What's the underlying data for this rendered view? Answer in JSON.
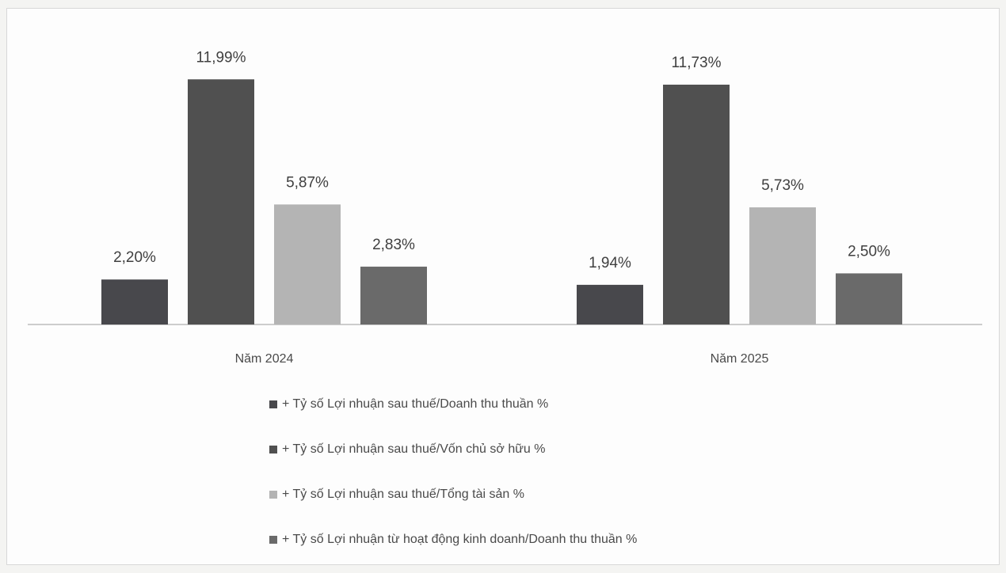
{
  "chart_data": {
    "type": "bar",
    "categories": [
      "Năm 2024",
      "Năm 2025"
    ],
    "series": [
      {
        "name": "+ Tỷ số Lợi nhuận sau thuế/Doanh thu thuần %",
        "values": [
          2.2,
          1.94
        ],
        "labels": [
          "2,20%",
          "1,94%"
        ],
        "color": "#48484c"
      },
      {
        "name": "+ Tỷ số Lợi nhuận sau thuế/Vốn chủ sở hữu %",
        "values": [
          11.99,
          11.73
        ],
        "labels": [
          "11,99%",
          "11,73%"
        ],
        "color": "#505050"
      },
      {
        "name": "+ Tỷ số Lợi nhuận sau thuế/Tổng tài sản %",
        "values": [
          5.87,
          5.73
        ],
        "labels": [
          "5,87%",
          "5,73%"
        ],
        "color": "#b4b4b4"
      },
      {
        "name": "+ Tỷ số Lợi nhuận từ hoạt động kinh doanh/Doanh thu thuần %",
        "values": [
          2.83,
          2.5
        ],
        "labels": [
          "2,83%",
          "2,50%"
        ],
        "color": "#6a6a6a"
      }
    ],
    "ylim": [
      0,
      12
    ],
    "grid": false,
    "legend_position": "bottom"
  }
}
